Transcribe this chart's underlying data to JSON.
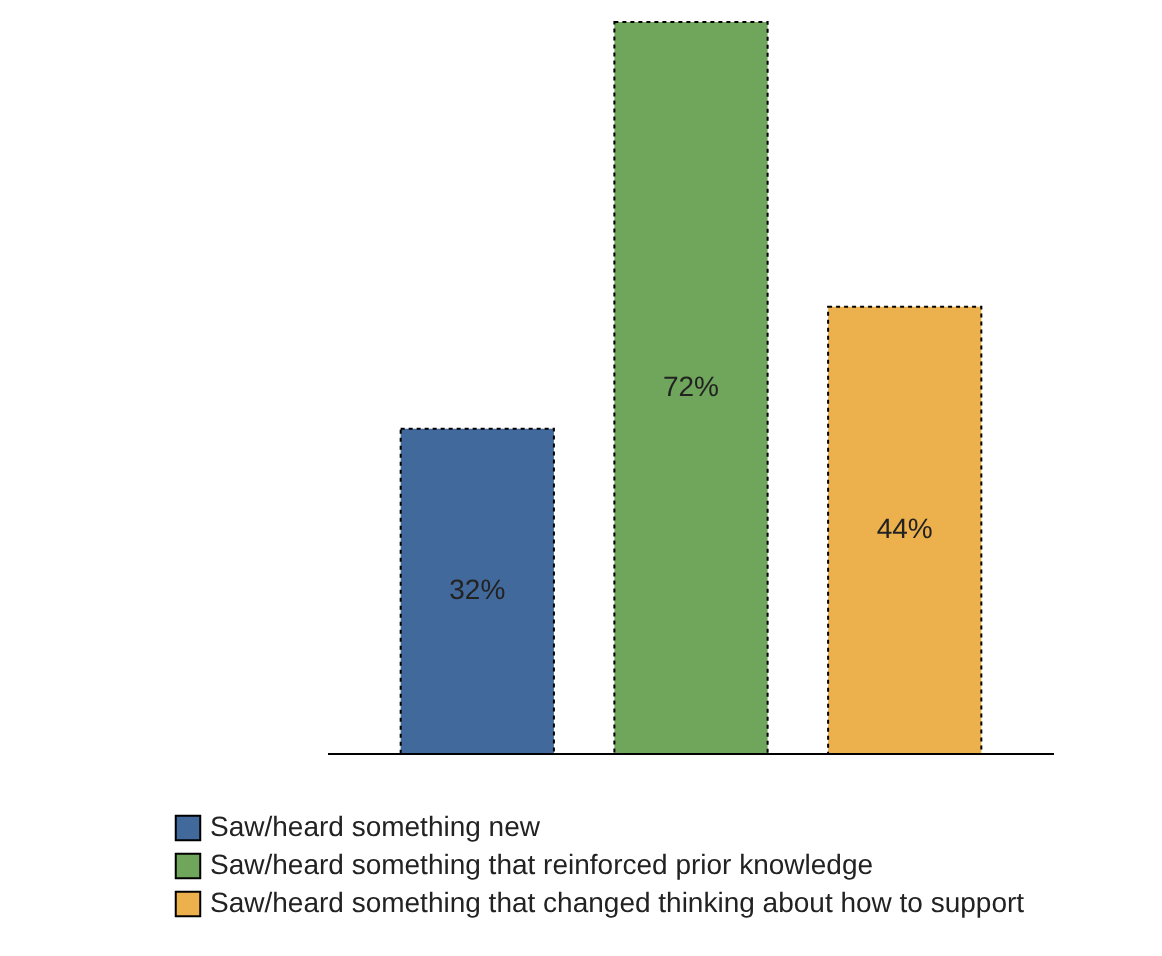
{
  "chart_data": {
    "type": "bar",
    "categories": [
      null
    ],
    "legend": "bottom left",
    "series": [
      {
        "name": "Saw/heard something new",
        "color": "#41699b",
        "values": [
          32
        ],
        "value_labels": [
          "32%"
        ]
      },
      {
        "name": "Saw/heard something that reinforced prior knowledge",
        "color": "#6fa65b",
        "values": [
          72
        ],
        "value_labels": [
          "72%"
        ]
      },
      {
        "name": "Saw/heard something that changed thinking about how to support",
        "color": "#ecb04c",
        "values": [
          44
        ],
        "value_labels": [
          "44%"
        ]
      }
    ]
  }
}
